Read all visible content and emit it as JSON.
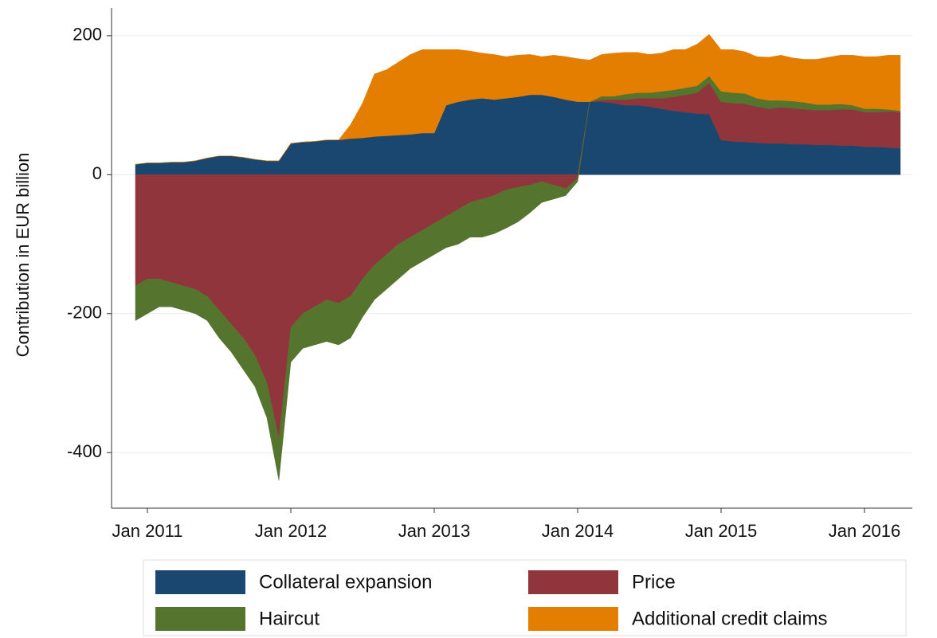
{
  "chart_data": {
    "type": "stacked-area",
    "y_label": "Contribution in EUR billion",
    "x": [
      "2010-12",
      "2011-01",
      "2011-02",
      "2011-03",
      "2011-04",
      "2011-05",
      "2011-06",
      "2011-07",
      "2011-08",
      "2011-09",
      "2011-10",
      "2011-11",
      "2011-12",
      "2012-01",
      "2012-02",
      "2012-03",
      "2012-04",
      "2012-05",
      "2012-06",
      "2012-07",
      "2012-08",
      "2012-09",
      "2012-10",
      "2012-11",
      "2012-12",
      "2013-01",
      "2013-02",
      "2013-03",
      "2013-04",
      "2013-05",
      "2013-06",
      "2013-07",
      "2013-08",
      "2013-09",
      "2013-10",
      "2013-11",
      "2013-12",
      "2014-01",
      "2014-02",
      "2014-03",
      "2014-04",
      "2014-05",
      "2014-06",
      "2014-07",
      "2014-08",
      "2014-09",
      "2014-10",
      "2014-11",
      "2014-12",
      "2015-01",
      "2015-02",
      "2015-03",
      "2015-04",
      "2015-05",
      "2015-06",
      "2015-07",
      "2015-08",
      "2015-09",
      "2015-10",
      "2015-11",
      "2015-12",
      "2016-01",
      "2016-02",
      "2016-03",
      "2016-04"
    ],
    "series": [
      {
        "name": "Collateral expansion",
        "color": "#1a476f",
        "values": [
          15,
          17,
          17,
          18,
          18,
          20,
          24,
          27,
          27,
          25,
          22,
          20,
          20,
          45,
          47,
          48,
          50,
          50,
          52,
          53,
          55,
          56,
          57,
          58,
          60,
          60,
          100,
          105,
          108,
          110,
          108,
          110,
          112,
          115,
          115,
          112,
          108,
          105,
          105,
          105,
          103,
          100,
          100,
          98,
          95,
          92,
          90,
          88,
          87,
          50,
          48,
          47,
          46,
          45,
          45,
          44,
          44,
          43,
          43,
          42,
          42,
          40,
          40,
          39,
          38
        ]
      },
      {
        "name": "Price",
        "color": "#90353b",
        "values": [
          -160,
          -150,
          -150,
          -155,
          -160,
          -165,
          -175,
          -195,
          -215,
          -235,
          -260,
          -300,
          -380,
          -220,
          -200,
          -190,
          -180,
          -185,
          -175,
          -150,
          -130,
          -115,
          -100,
          -90,
          -80,
          -70,
          -60,
          -50,
          -40,
          -35,
          -30,
          -22,
          -18,
          -15,
          -10,
          -15,
          -20,
          -5,
          0,
          3,
          5,
          8,
          10,
          12,
          15,
          20,
          25,
          30,
          45,
          55,
          55,
          55,
          52,
          50,
          52,
          52,
          50,
          50,
          50,
          52,
          52,
          50,
          50,
          52,
          52
        ]
      },
      {
        "name": "Haircut",
        "color": "#55752f",
        "values": [
          -50,
          -50,
          -40,
          -35,
          -35,
          -35,
          -35,
          -40,
          -40,
          -45,
          -45,
          -50,
          -60,
          -50,
          -50,
          -55,
          -60,
          -60,
          -60,
          -55,
          -50,
          -50,
          -50,
          -45,
          -45,
          -45,
          -45,
          -50,
          -50,
          -55,
          -55,
          -55,
          -50,
          -40,
          -30,
          -20,
          -10,
          -5,
          0,
          5,
          5,
          8,
          8,
          8,
          10,
          10,
          10,
          10,
          10,
          15,
          15,
          15,
          12,
          12,
          10,
          10,
          10,
          8,
          8,
          8,
          6,
          5,
          5,
          3,
          2
        ]
      },
      {
        "name": "Additional credit claims",
        "color": "#e37e00",
        "values": [
          0,
          0,
          0,
          0,
          0,
          0,
          0,
          0,
          0,
          0,
          0,
          0,
          0,
          0,
          0,
          0,
          0,
          0,
          20,
          50,
          90,
          95,
          105,
          115,
          120,
          120,
          80,
          75,
          70,
          65,
          65,
          60,
          60,
          58,
          55,
          60,
          62,
          62,
          60,
          60,
          62,
          60,
          58,
          55,
          55,
          58,
          55,
          60,
          60,
          60,
          62,
          60,
          60,
          62,
          65,
          62,
          62,
          65,
          68,
          70,
          72,
          75,
          75,
          78,
          80
        ]
      }
    ],
    "xlim": [
      "2010-10",
      "2016-05"
    ],
    "xticks": [
      {
        "value": "2011-01",
        "label": "Jan 2011"
      },
      {
        "value": "2012-01",
        "label": "Jan 2012"
      },
      {
        "value": "2013-01",
        "label": "Jan 2013"
      },
      {
        "value": "2014-01",
        "label": "Jan 2014"
      },
      {
        "value": "2015-01",
        "label": "Jan 2015"
      },
      {
        "value": "2016-01",
        "label": "Jan 2016"
      }
    ],
    "ylim": [
      -480,
      240
    ],
    "yticks": [
      -400,
      -200,
      0,
      200
    ],
    "grid": true
  }
}
